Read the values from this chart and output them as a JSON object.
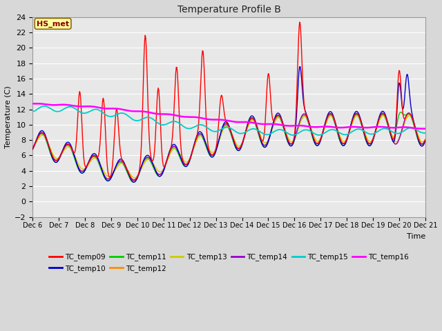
{
  "title": "Temperature Profile B",
  "xlabel": "Time",
  "ylabel": "Temperature (C)",
  "ylim": [
    -2,
    24
  ],
  "yticks": [
    -2,
    0,
    2,
    4,
    6,
    8,
    10,
    12,
    14,
    16,
    18,
    20,
    22,
    24
  ],
  "x_labels": [
    "Dec 6",
    "Dec 7",
    "Dec 8",
    "Dec 9",
    "Dec 10",
    "Dec 11",
    "Dec 12",
    "Dec 13",
    "Dec 14",
    "Dec 15",
    "Dec 16",
    "Dec 17",
    "Dec 18",
    "Dec 19",
    "Dec 20",
    "Dec 21"
  ],
  "annotation_text": "HS_met",
  "annotation_color": "#8B0000",
  "annotation_bg": "#FFFFA0",
  "annotation_border": "#8B6914",
  "series_colors": {
    "TC_temp09": "#FF0000",
    "TC_temp10": "#0000CC",
    "TC_temp11": "#00CC00",
    "TC_temp12": "#FF8C00",
    "TC_temp13": "#CCCC00",
    "TC_temp14": "#9900CC",
    "TC_temp15": "#00CCCC",
    "TC_temp16": "#FF00FF"
  },
  "bg_color": "#E8E8E8",
  "fig_bg": "#D8D8D8",
  "grid_color": "#FFFFFF",
  "legend_ncol_row1": 6,
  "legend_ncol_row2": 2
}
